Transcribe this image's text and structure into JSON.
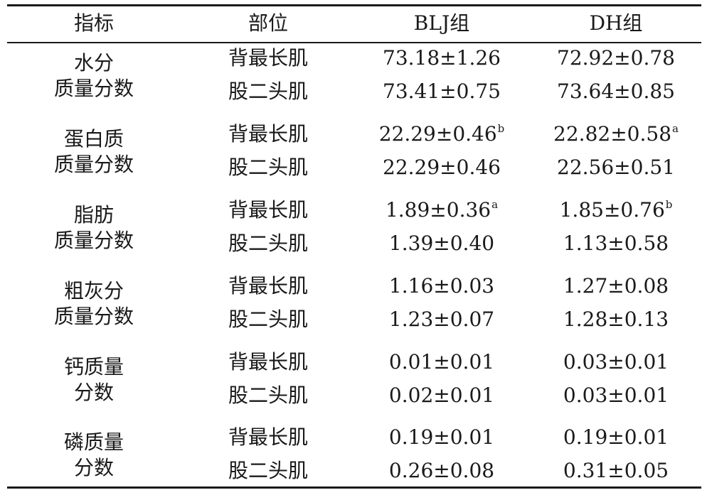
{
  "table": {
    "headers": [
      "指标",
      "部位",
      "BLJ组",
      "DH组"
    ],
    "groups": [
      {
        "indicator": [
          "水分",
          "质量分数"
        ],
        "rows": [
          {
            "part": "背最长肌",
            "blj": "73.18±1.26",
            "blj_sup": "",
            "dh": "72.92±0.78",
            "dh_sup": ""
          },
          {
            "part": "股二头肌",
            "blj": "73.41±0.75",
            "blj_sup": "",
            "dh": "73.64±0.85",
            "dh_sup": ""
          }
        ]
      },
      {
        "indicator": [
          "蛋白质",
          "质量分数"
        ],
        "rows": [
          {
            "part": "背最长肌",
            "blj": "22.29±0.46",
            "blj_sup": "b",
            "dh": "22.82±0.58",
            "dh_sup": "a"
          },
          {
            "part": "股二头肌",
            "blj": "22.29±0.46",
            "blj_sup": "",
            "dh": "22.56±0.51",
            "dh_sup": ""
          }
        ]
      },
      {
        "indicator": [
          "脂肪",
          "质量分数"
        ],
        "rows": [
          {
            "part": "背最长肌",
            "blj": "1.89±0.36",
            "blj_sup": "a",
            "dh": "1.85±0.76",
            "dh_sup": "b"
          },
          {
            "part": "股二头肌",
            "blj": "1.39±0.40",
            "blj_sup": "",
            "dh": "1.13±0.58",
            "dh_sup": ""
          }
        ]
      },
      {
        "indicator": [
          "粗灰分",
          "质量分数"
        ],
        "rows": [
          {
            "part": "背最长肌",
            "blj": "1.16±0.03",
            "blj_sup": "",
            "dh": "1.27±0.08",
            "dh_sup": ""
          },
          {
            "part": "股二头肌",
            "blj": "1.23±0.07",
            "blj_sup": "",
            "dh": "1.28±0.13",
            "dh_sup": ""
          }
        ]
      },
      {
        "indicator": [
          "钙质量",
          "分数"
        ],
        "rows": [
          {
            "part": "背最长肌",
            "blj": "0.01±0.01",
            "blj_sup": "",
            "dh": "0.03±0.01",
            "dh_sup": ""
          },
          {
            "part": "股二头肌",
            "blj": "0.02±0.01",
            "blj_sup": "",
            "dh": "0.03±0.01",
            "dh_sup": ""
          }
        ]
      },
      {
        "indicator": [
          "磷质量",
          "分数"
        ],
        "rows": [
          {
            "part": "背最长肌",
            "blj": "0.19±0.01",
            "blj_sup": "",
            "dh": "0.19±0.01",
            "dh_sup": ""
          },
          {
            "part": "股二头肌",
            "blj": "0.26±0.08",
            "blj_sup": "",
            "dh": "0.31±0.05",
            "dh_sup": ""
          }
        ]
      }
    ]
  }
}
